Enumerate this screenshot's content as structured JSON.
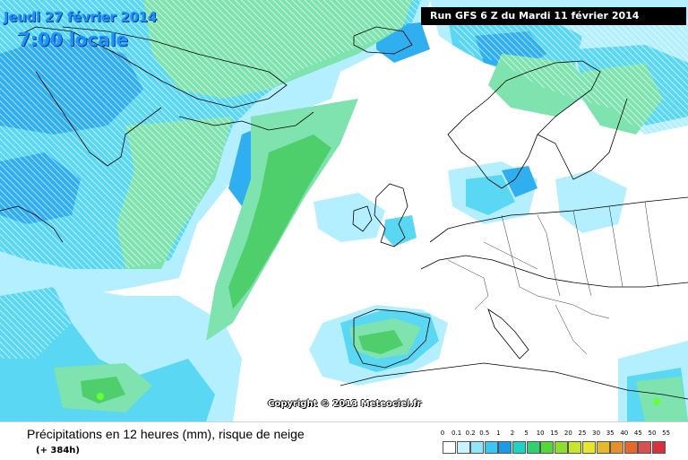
{
  "header": {
    "date": "Jeudi 27 février 2014",
    "time": "7:00 locale",
    "run": "Run GFS 6 Z du Mardi 11 février 2014"
  },
  "copyright": "Copyright © 2013 Meteociel.fr",
  "caption": {
    "title": "Précipitations en 12 heures (mm), risque de neige",
    "horizon": "(+ 384h)"
  },
  "colors": {
    "ocean": "#ffffff",
    "light_cyan": "#b3efff",
    "cyan": "#5ad7f2",
    "blue": "#2faef0",
    "mint": "#7fe3b0",
    "green": "#4ecf6b",
    "bright_green": "#66ff33",
    "hatch": "#ffffff",
    "borders": "#000000"
  },
  "legend": {
    "labels": [
      "0",
      "0.1",
      "0.2",
      "0.5",
      "1",
      "2",
      "5",
      "10",
      "15",
      "20",
      "25",
      "30",
      "35",
      "40",
      "45",
      "50",
      "55"
    ],
    "colors": [
      "#ffffff",
      "#c8f4ff",
      "#8ee6ff",
      "#38c8f5",
      "#1a9ae8",
      "#1fd3c4",
      "#2ed16e",
      "#52d934",
      "#8ae02d",
      "#c8e62c",
      "#e6e62c",
      "#e6b92c",
      "#e6902c",
      "#e6682c",
      "#d95050",
      "#d9303d"
    ]
  }
}
